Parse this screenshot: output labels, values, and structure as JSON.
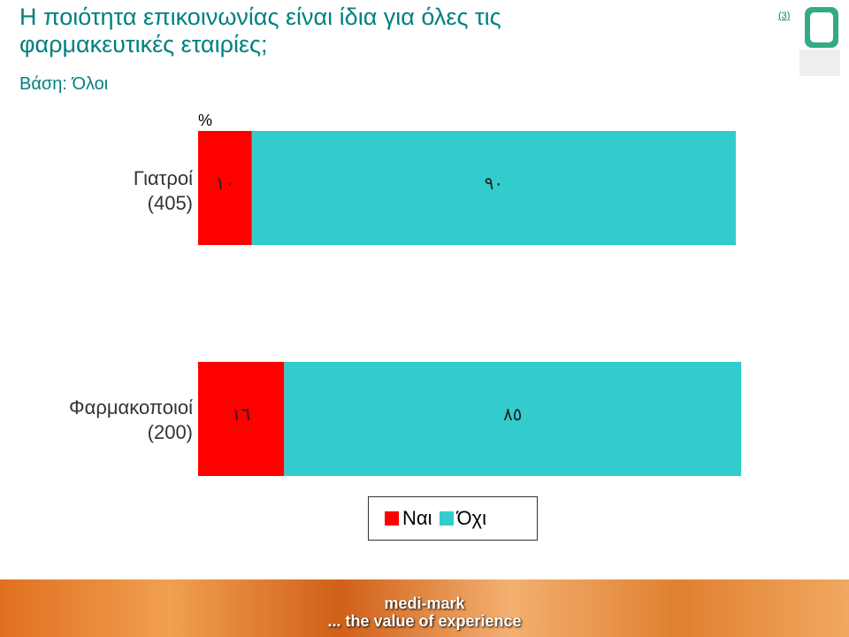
{
  "chart_data": {
    "type": "stacked-bar-horizontal",
    "title": "Η ποιότητα επικοινωνίας είναι ίδια για όλες τις φαρμακευτικές εταιρίες;",
    "subtitle": "Βάση: Όλοι",
    "page_number": "(3)",
    "unit_label": "%",
    "categories": [
      "Γιατροί (405)",
      "Φαρμακοποιοί (200)"
    ],
    "series": [
      {
        "name": "Ναι",
        "color": "#ff0000",
        "values": [
          10,
          16
        ],
        "value_labels": [
          "١٠",
          "١٦"
        ]
      },
      {
        "name": "Όχι",
        "color": "#33cccc",
        "values": [
          90,
          85
        ],
        "value_labels": [
          "٩٠",
          "٨٥"
        ]
      }
    ],
    "xlim": [
      0,
      100
    ],
    "footer": {
      "brand": "medi-mark",
      "tagline": "... the value of experience"
    }
  }
}
